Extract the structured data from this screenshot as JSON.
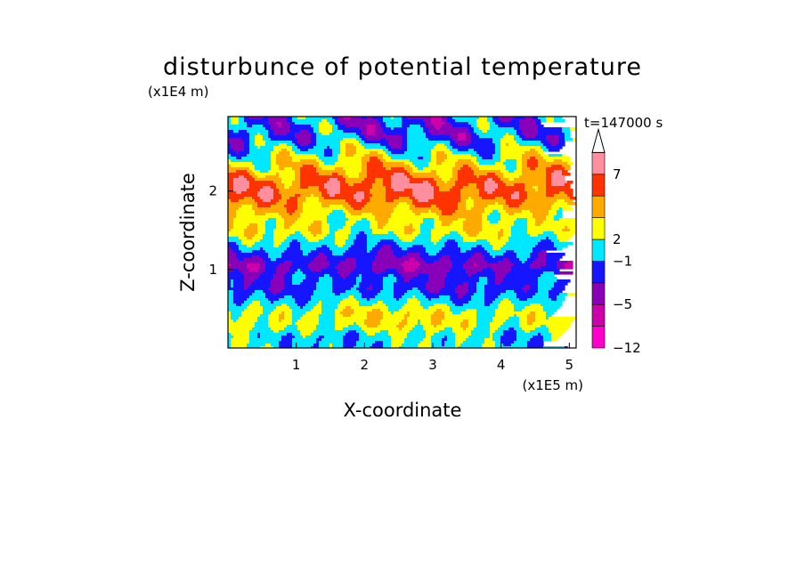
{
  "chart_data": {
    "type": "heatmap",
    "title": "disturbunce of potential temperature",
    "y_unit_label": "(x1E4 m)",
    "x_unit_label": "(x1E5 m)",
    "xlabel": "X-coordinate",
    "ylabel": "Z-coordinate",
    "time_label": "t=147000 s",
    "x_range": [
      0,
      5.1
    ],
    "y_range": [
      0,
      2.95
    ],
    "x_ticks": [
      1,
      2,
      3,
      4,
      5
    ],
    "y_ticks": [
      1,
      2
    ],
    "colorbar": {
      "labels": [
        {
          "level": 0,
          "text": "-12"
        },
        {
          "level": 2,
          "text": "-5"
        },
        {
          "level": 4,
          "text": "-1"
        },
        {
          "level": 5,
          "text": "2"
        },
        {
          "level": 8,
          "text": "7"
        }
      ],
      "colors": [
        "#ff00cc",
        "#cc00aa",
        "#8800b8",
        "#1515ff",
        "#00e8ff",
        "#ffff00",
        "#ffaa00",
        "#ff3300",
        "#ff8f9f"
      ],
      "extend": "max"
    },
    "field_bands": [
      {
        "z": 0.05,
        "level": 4
      },
      {
        "z": 0.15,
        "level": 4
      },
      {
        "z": 0.3,
        "level": 5
      },
      {
        "z": 0.45,
        "level": 5
      },
      {
        "z": 0.6,
        "level": 4
      },
      {
        "z": 0.75,
        "level": 3
      },
      {
        "z": 0.9,
        "level": 3
      },
      {
        "z": 1.05,
        "level": 2
      },
      {
        "z": 1.2,
        "level": 3
      },
      {
        "z": 1.35,
        "level": 4
      },
      {
        "z": 1.5,
        "level": 5
      },
      {
        "z": 1.65,
        "level": 5
      },
      {
        "z": 1.8,
        "level": 6
      },
      {
        "z": 1.95,
        "level": 7
      },
      {
        "z": 2.1,
        "level": 7
      },
      {
        "z": 2.25,
        "level": 6
      },
      {
        "z": 2.4,
        "level": 5
      },
      {
        "z": 2.55,
        "level": 4
      },
      {
        "z": 2.7,
        "level": 3
      },
      {
        "z": 2.85,
        "level": 3
      }
    ]
  }
}
